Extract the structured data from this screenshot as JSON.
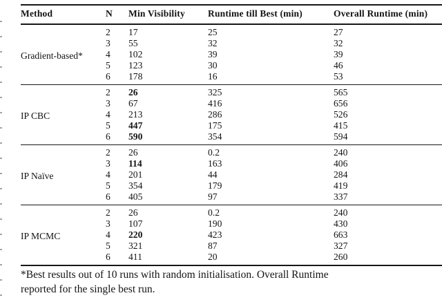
{
  "page": {
    "background": "#ffffff",
    "text_color": "#131313",
    "rule_color": "#161616"
  },
  "table": {
    "columns": [
      "Method",
      "N",
      "Min Visibility",
      "Runtime till Best (min)",
      "Overall Runtime (min)"
    ],
    "groups": [
      {
        "method": "Gradient-based*",
        "rows": [
          {
            "n": "2",
            "min_visibility": "17",
            "min_visibility_bold": false,
            "runtime_till_best": "25",
            "overall_runtime": "27"
          },
          {
            "n": "3",
            "min_visibility": "55",
            "min_visibility_bold": false,
            "runtime_till_best": "32",
            "overall_runtime": "32"
          },
          {
            "n": "4",
            "min_visibility": "102",
            "min_visibility_bold": false,
            "runtime_till_best": "39",
            "overall_runtime": "39"
          },
          {
            "n": "5",
            "min_visibility": "123",
            "min_visibility_bold": false,
            "runtime_till_best": "30",
            "overall_runtime": "46"
          },
          {
            "n": "6",
            "min_visibility": "178",
            "min_visibility_bold": false,
            "runtime_till_best": "16",
            "overall_runtime": "53"
          }
        ]
      },
      {
        "method": "IP CBC",
        "rows": [
          {
            "n": "2",
            "min_visibility": "26",
            "min_visibility_bold": true,
            "runtime_till_best": "325",
            "overall_runtime": "565"
          },
          {
            "n": "3",
            "min_visibility": "67",
            "min_visibility_bold": false,
            "runtime_till_best": "416",
            "overall_runtime": "656"
          },
          {
            "n": "4",
            "min_visibility": "213",
            "min_visibility_bold": false,
            "runtime_till_best": "286",
            "overall_runtime": "526"
          },
          {
            "n": "5",
            "min_visibility": "447",
            "min_visibility_bold": true,
            "runtime_till_best": "175",
            "overall_runtime": "415"
          },
          {
            "n": "6",
            "min_visibility": "590",
            "min_visibility_bold": true,
            "runtime_till_best": "354",
            "overall_runtime": "594"
          }
        ]
      },
      {
        "method": "IP Naïve",
        "rows": [
          {
            "n": "2",
            "min_visibility": "26",
            "min_visibility_bold": false,
            "runtime_till_best": "0.2",
            "overall_runtime": "240"
          },
          {
            "n": "3",
            "min_visibility": "114",
            "min_visibility_bold": true,
            "runtime_till_best": "163",
            "overall_runtime": "406"
          },
          {
            "n": "4",
            "min_visibility": "201",
            "min_visibility_bold": false,
            "runtime_till_best": "44",
            "overall_runtime": "284"
          },
          {
            "n": "5",
            "min_visibility": "354",
            "min_visibility_bold": false,
            "runtime_till_best": "179",
            "overall_runtime": "419"
          },
          {
            "n": "6",
            "min_visibility": "405",
            "min_visibility_bold": false,
            "runtime_till_best": "97",
            "overall_runtime": "337"
          }
        ]
      },
      {
        "method": "IP MCMC",
        "rows": [
          {
            "n": "2",
            "min_visibility": "26",
            "min_visibility_bold": false,
            "runtime_till_best": "0.2",
            "overall_runtime": "240"
          },
          {
            "n": "3",
            "min_visibility": "107",
            "min_visibility_bold": false,
            "runtime_till_best": "190",
            "overall_runtime": "430"
          },
          {
            "n": "4",
            "min_visibility": "220",
            "min_visibility_bold": true,
            "runtime_till_best": "423",
            "overall_runtime": "663"
          },
          {
            "n": "5",
            "min_visibility": "321",
            "min_visibility_bold": false,
            "runtime_till_best": "87",
            "overall_runtime": "327"
          },
          {
            "n": "6",
            "min_visibility": "411",
            "min_visibility_bold": false,
            "runtime_till_best": "20",
            "overall_runtime": "260"
          }
        ]
      }
    ],
    "footnote": {
      "line1": "*Best results out of 10 runs with random initialisation. Overall Runtime",
      "line2": "reported for the single best run."
    }
  }
}
